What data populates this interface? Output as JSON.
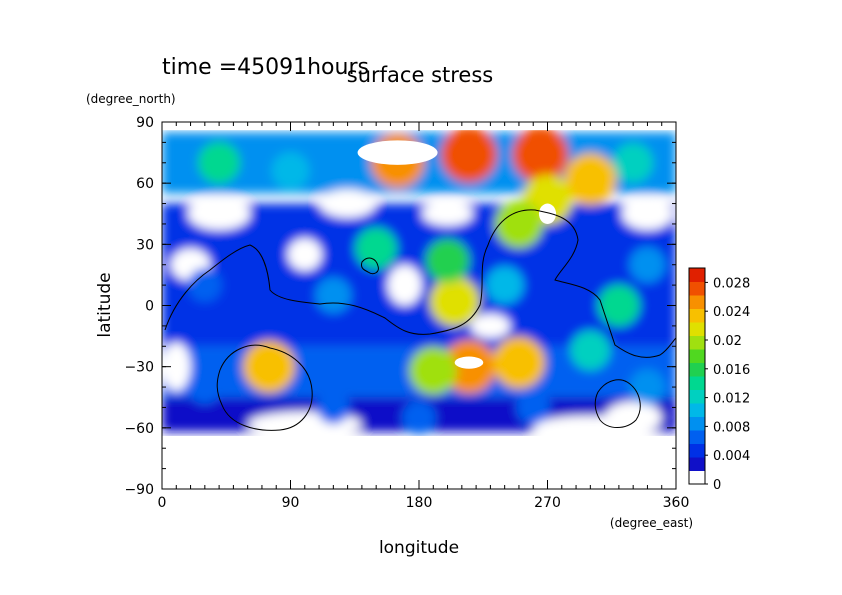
{
  "chart_data": {
    "type": "heatmap",
    "title": "surface stress",
    "subtitle": "time =45091hours",
    "xlabel": "longitude",
    "ylabel": "latitude",
    "xunit": "(degree_east)",
    "yunit": "(degree_north)",
    "xlim": [
      0,
      360
    ],
    "ylim": [
      -90,
      90
    ],
    "xticks": [
      "0",
      "90",
      "180",
      "270",
      "360"
    ],
    "yticks": [
      "90",
      "60",
      "30",
      "0",
      "−30",
      "−60",
      "−90"
    ],
    "xtick_values": [
      0,
      90,
      180,
      270,
      360
    ],
    "ytick_values": [
      90,
      60,
      30,
      0,
      -30,
      -60,
      -90
    ],
    "colorbar": {
      "min": 0,
      "max": 0.03,
      "tick_labels": [
        "0",
        "0.004",
        "0.008",
        "0.012",
        "0.016",
        "0.02",
        "0.024",
        "0.028"
      ],
      "tick_values": [
        0,
        0.004,
        0.008,
        0.012,
        0.016,
        0.02,
        0.024,
        0.028
      ],
      "colors": [
        "#ffffff",
        "#1010c8",
        "#0030e6",
        "#0060f0",
        "#0090f0",
        "#00b8e8",
        "#00d0c0",
        "#00d890",
        "#20d050",
        "#50d820",
        "#a0e010",
        "#e0e000",
        "#f8c000",
        "#f89000",
        "#f05000",
        "#e02000"
      ]
    },
    "grid": false,
    "features": [
      {
        "lon": 165,
        "lat": 71,
        "level": 0.026
      },
      {
        "lon": 215,
        "lat": 74,
        "level": 0.028
      },
      {
        "lon": 265,
        "lat": 74,
        "level": 0.028
      },
      {
        "lon": 300,
        "lat": 62,
        "level": 0.024
      },
      {
        "lon": 270,
        "lat": 52,
        "level": 0.022
      },
      {
        "lon": 250,
        "lat": 40,
        "level": 0.02
      },
      {
        "lon": 40,
        "lat": 70,
        "level": 0.014
      },
      {
        "lon": 90,
        "lat": 66,
        "level": 0.01
      },
      {
        "lon": 330,
        "lat": 70,
        "level": 0.012
      },
      {
        "lon": 205,
        "lat": 2,
        "level": 0.022
      },
      {
        "lon": 200,
        "lat": 22,
        "level": 0.016
      },
      {
        "lon": 75,
        "lat": -30,
        "level": 0.024
      },
      {
        "lon": 215,
        "lat": -30,
        "level": 0.026
      },
      {
        "lon": 250,
        "lat": -28,
        "level": 0.024
      },
      {
        "lon": 190,
        "lat": -32,
        "level": 0.02
      },
      {
        "lon": 320,
        "lat": 0,
        "level": 0.014
      },
      {
        "lon": 300,
        "lat": -22,
        "level": 0.012
      },
      {
        "lon": 150,
        "lat": 28,
        "level": 0.014
      },
      {
        "lon": 240,
        "lat": 10,
        "level": 0.01
      },
      {
        "lon": 120,
        "lat": 5,
        "level": 0.008
      },
      {
        "lon": 30,
        "lat": 10,
        "level": 0.006
      },
      {
        "lon": 340,
        "lat": 20,
        "level": 0.008
      },
      {
        "lon": 340,
        "lat": -40,
        "level": 0.008
      },
      {
        "lon": 260,
        "lat": -50,
        "level": 0.006
      },
      {
        "lon": 30,
        "lat": -40,
        "level": 0.006
      },
      {
        "lon": 180,
        "lat": -55,
        "level": 0.006
      },
      {
        "lon": 120,
        "lat": -50,
        "level": 0.005
      }
    ]
  }
}
